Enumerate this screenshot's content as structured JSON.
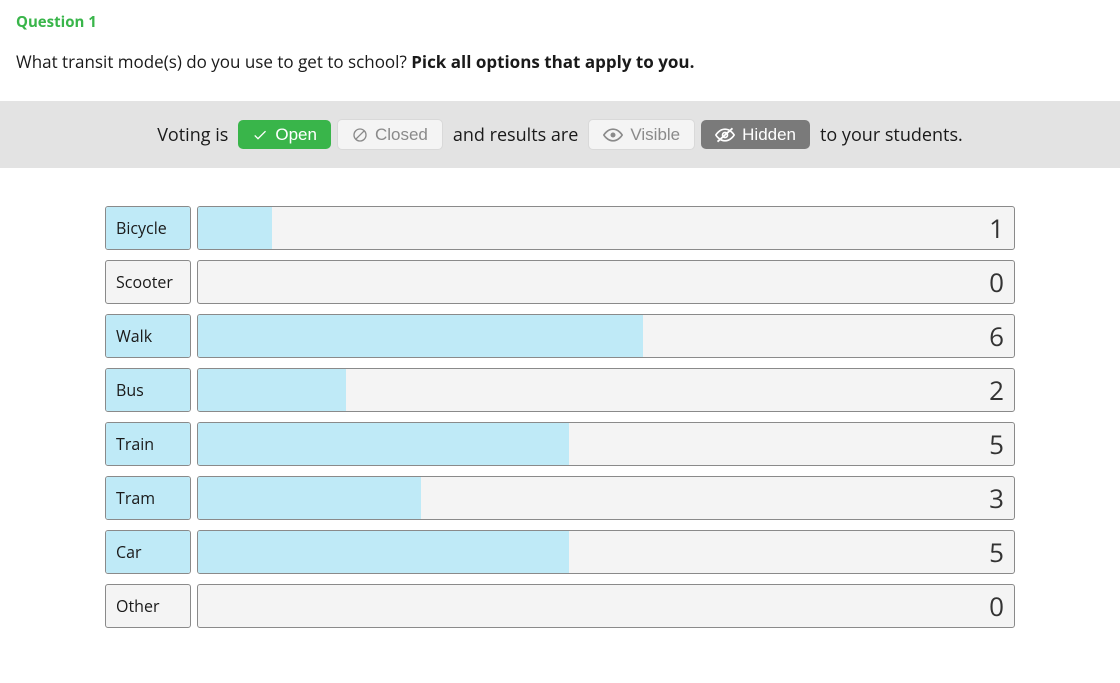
{
  "colors": {
    "accent_green": "#39b54a",
    "bar_fill": "#bfeaf7",
    "panel_bg": "#e3e3e3",
    "cell_bg": "#f4f4f4",
    "cell_border": "#8a8a8a",
    "inactive_text": "#8a8a8a",
    "dark_grey_btn": "#7a7a7a",
    "text": "#1a1a1a"
  },
  "question": {
    "number_label": "Question 1",
    "text_plain": "What transit mode(s) do you use to get to school? ",
    "text_bold": "Pick all options that apply to you."
  },
  "status": {
    "prefix": "Voting is",
    "open_label": "Open",
    "closed_label": "Closed",
    "voting_state": "open",
    "middle": "and results are",
    "visible_label": "Visible",
    "hidden_label": "Hidden",
    "results_state": "hidden",
    "suffix": "to your students."
  },
  "results": {
    "type": "bar",
    "max_value_for_scale": 11,
    "bar_color": "#bfeaf7",
    "background_color": "#f4f4f4",
    "border_color": "#8a8a8a",
    "count_fontsize": 26,
    "label_fontsize": 16,
    "options": [
      {
        "label": "Bicycle",
        "count": 1,
        "label_fill_pct": 100
      },
      {
        "label": "Scooter",
        "count": 0,
        "label_fill_pct": 0
      },
      {
        "label": "Walk",
        "count": 6,
        "label_fill_pct": 100
      },
      {
        "label": "Bus",
        "count": 2,
        "label_fill_pct": 100
      },
      {
        "label": "Train",
        "count": 5,
        "label_fill_pct": 100
      },
      {
        "label": "Tram",
        "count": 3,
        "label_fill_pct": 100
      },
      {
        "label": "Car",
        "count": 5,
        "label_fill_pct": 100
      },
      {
        "label": "Other",
        "count": 0,
        "label_fill_pct": 0
      }
    ]
  }
}
